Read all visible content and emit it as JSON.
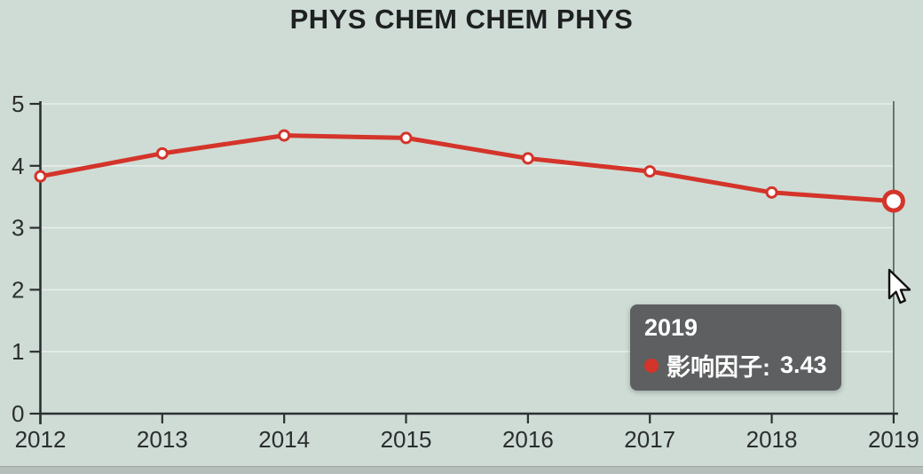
{
  "title": "PHYS CHEM CHEM PHYS",
  "colors": {
    "background": "#cedcd5",
    "line": "#d4342a",
    "marker_fill": "#ffffff",
    "axis": "#2c2f32",
    "text": "#2b2d2f",
    "grid": "rgba(255,255,255,0.5)",
    "tooltip_bg": "#5d5f60",
    "tooltip_text": "#ffffff",
    "crosshair": "#5c6a64",
    "bottom_strip": "#b7bfba"
  },
  "chart_data": {
    "type": "line",
    "title": "PHYS CHEM CHEM PHYS",
    "x": [
      "2012",
      "2013",
      "2014",
      "2015",
      "2016",
      "2017",
      "2018",
      "2019"
    ],
    "series": [
      {
        "name": "影响因子",
        "values": [
          3.83,
          4.2,
          4.49,
          4.45,
          4.12,
          3.91,
          3.57,
          3.43
        ]
      }
    ],
    "xlabel": "",
    "ylabel": "",
    "ylim": [
      0,
      5
    ],
    "yticks": [
      0,
      1,
      2,
      3,
      4,
      5
    ],
    "grid": "faint horizontal",
    "legend": "none",
    "highlight_x": "2019",
    "crosshair_at": "2019"
  },
  "tooltip": {
    "title": "2019",
    "series_label": "影响因子:",
    "value": "3.43"
  }
}
